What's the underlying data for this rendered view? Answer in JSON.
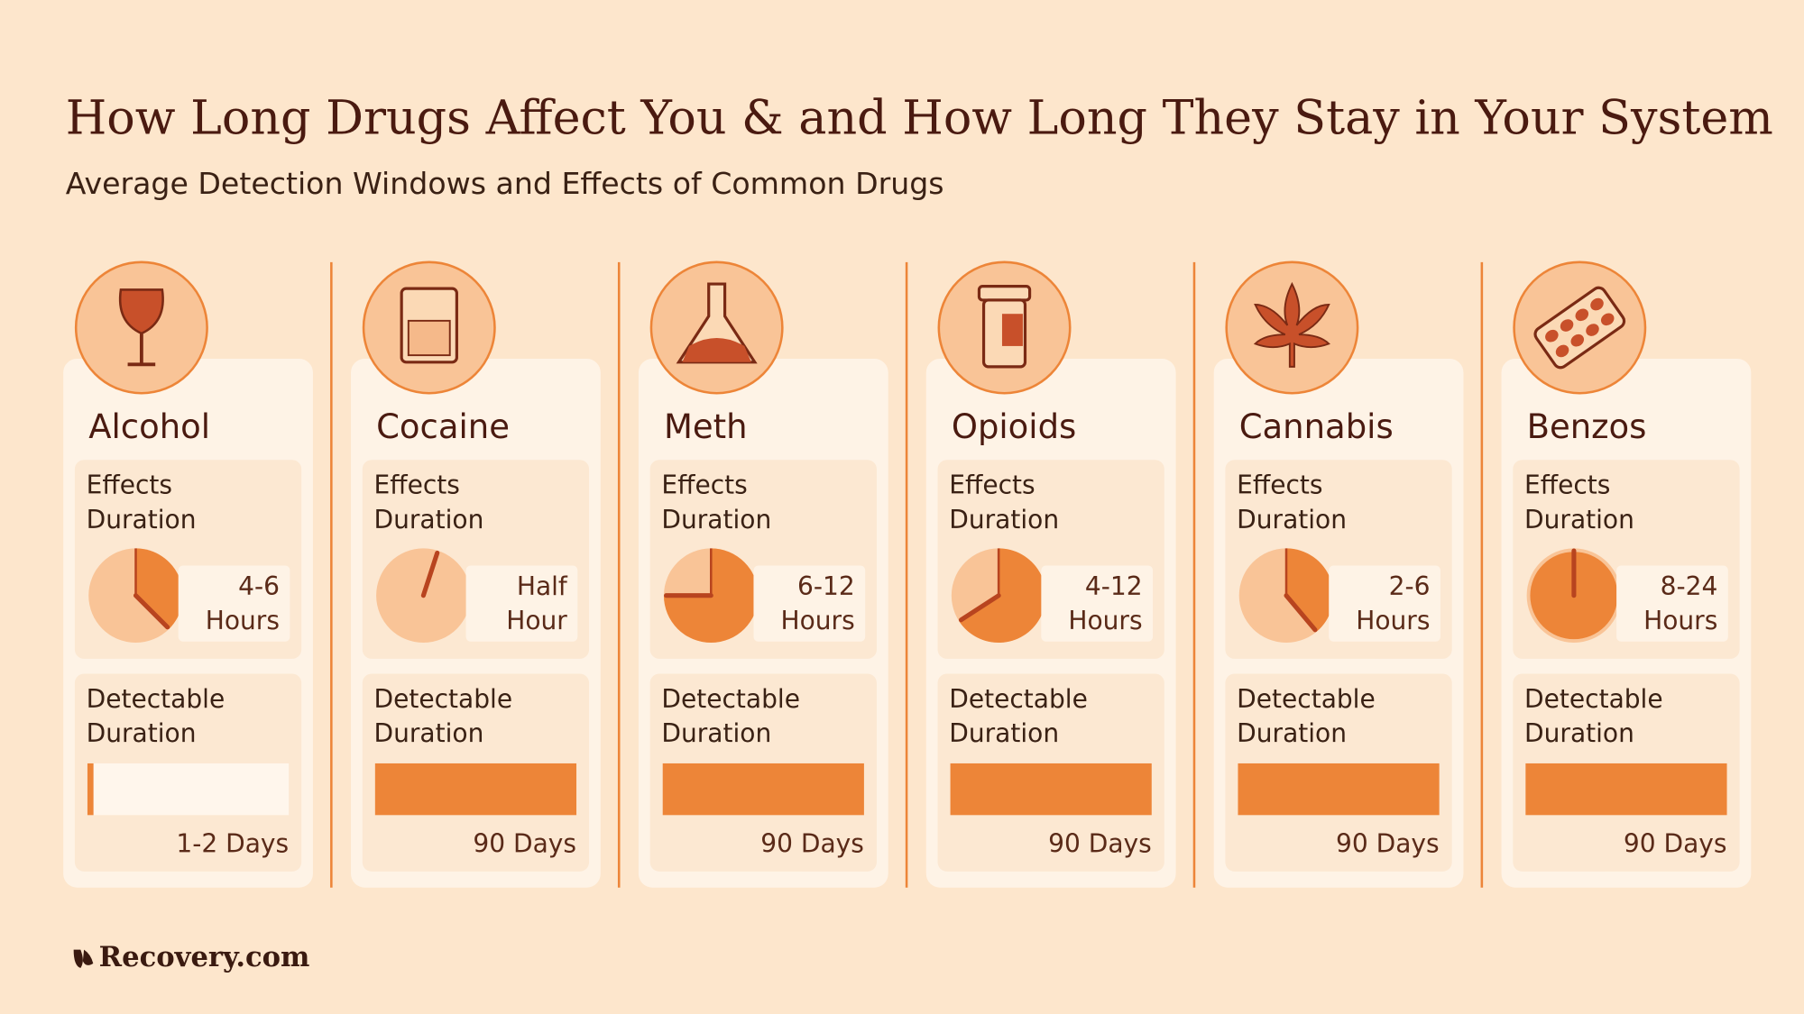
{
  "header": {
    "title": "How Long Drugs Affect You & and How Long They Stay in Your System",
    "subtitle": "Average Detection Windows and Effects of Common Drugs"
  },
  "cards": [
    {
      "name": "Alcohol",
      "effects_label": [
        "Effects",
        "Duration"
      ],
      "effects_value": [
        "4-6",
        "Hours"
      ],
      "detect_label": [
        "Detectable",
        "Duration"
      ],
      "detect_value": "1-2 Days"
    },
    {
      "name": "Cocaine",
      "effects_label": [
        "Effects",
        "Duration"
      ],
      "effects_value": [
        "Half",
        "Hour"
      ],
      "detect_label": [
        "Detectable",
        "Duration"
      ],
      "detect_value": "90 Days"
    },
    {
      "name": "Meth",
      "effects_label": [
        "Effects",
        "Duration"
      ],
      "effects_value": [
        "6-12",
        "Hours"
      ],
      "detect_label": [
        "Detectable",
        "Duration"
      ],
      "detect_value": "90 Days"
    },
    {
      "name": "Opioids",
      "effects_label": [
        "Effects",
        "Duration"
      ],
      "effects_value": [
        "4-12",
        "Hours"
      ],
      "detect_label": [
        "Detectable",
        "Duration"
      ],
      "detect_value": "90 Days"
    },
    {
      "name": "Cannabis",
      "effects_label": [
        "Effects",
        "Duration"
      ],
      "effects_value": [
        "2-6",
        "Hours"
      ],
      "detect_label": [
        "Detectable",
        "Duration"
      ],
      "detect_value": "90 Days"
    },
    {
      "name": "Benzos",
      "effects_label": [
        "Effects",
        "Duration"
      ],
      "effects_value": [
        "8-24",
        "Hours"
      ],
      "detect_label": [
        "Detectable",
        "Duration"
      ],
      "detect_value": "90 Days"
    }
  ],
  "footer": {
    "logo": "Recovery.com"
  }
}
